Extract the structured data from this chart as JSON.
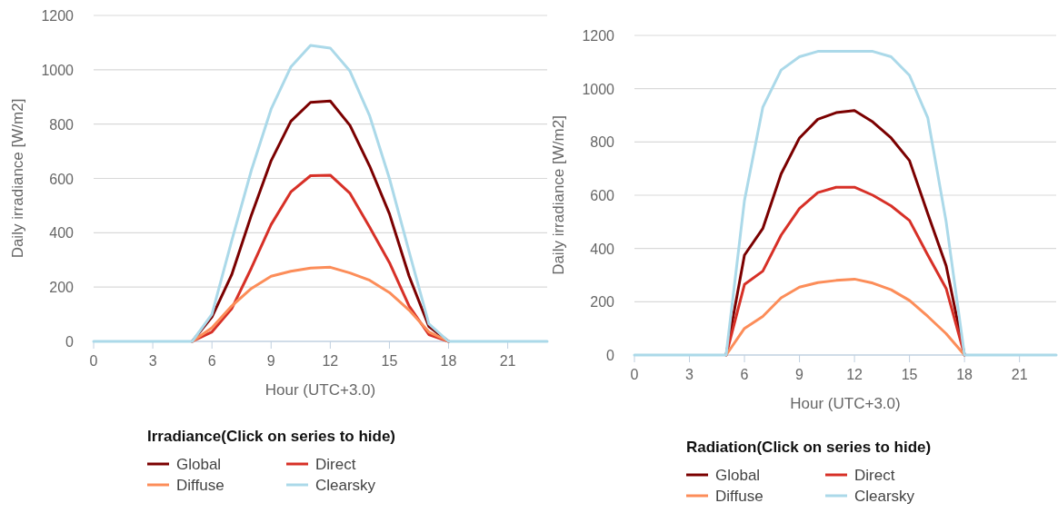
{
  "chart_data": [
    {
      "type": "line",
      "xlabel": "Hour (UTC+3.0)",
      "ylabel": "Daily irradiance [W/m2]",
      "legend_title": "Irradiance(Click on series to hide)",
      "legend": "bottom",
      "grid": "y",
      "marker": "none",
      "line_style": "solid",
      "x": [
        0,
        1,
        2,
        3,
        4,
        5,
        6,
        7,
        8,
        9,
        10,
        11,
        12,
        13,
        14,
        15,
        16,
        17,
        18,
        19,
        20,
        21,
        22,
        23
      ],
      "xlim": [
        0,
        23
      ],
      "xticks": [
        0,
        3,
        6,
        9,
        12,
        15,
        18,
        21
      ],
      "ylim": [
        0,
        1200
      ],
      "yticks": [
        0,
        200,
        400,
        600,
        800,
        1000,
        1200
      ],
      "series": [
        {
          "name": "Global",
          "color": "#7b0000",
          "values": [
            null,
            null,
            null,
            null,
            null,
            0,
            90,
            245,
            465,
            665,
            810,
            880,
            885,
            795,
            645,
            470,
            240,
            55,
            0,
            null,
            null,
            null,
            null,
            null
          ]
        },
        {
          "name": "Direct",
          "color": "#d73027",
          "values": [
            null,
            null,
            null,
            null,
            null,
            0,
            35,
            120,
            270,
            430,
            550,
            610,
            612,
            545,
            420,
            290,
            130,
            25,
            0,
            null,
            null,
            null,
            null,
            null
          ]
        },
        {
          "name": "Diffuse",
          "color": "#fc8d59",
          "values": [
            null,
            null,
            null,
            null,
            null,
            0,
            50,
            130,
            195,
            240,
            258,
            270,
            273,
            252,
            225,
            180,
            115,
            35,
            0,
            null,
            null,
            null,
            null,
            null
          ]
        },
        {
          "name": "Clearsky",
          "color": "#abd9e9",
          "values": [
            0,
            0,
            0,
            0,
            0,
            0,
            100,
            370,
            630,
            855,
            1010,
            1090,
            1080,
            995,
            830,
            600,
            330,
            65,
            0,
            0,
            0,
            0,
            0,
            0
          ]
        }
      ]
    },
    {
      "type": "line",
      "xlabel": "Hour (UTC+3.0)",
      "ylabel": "Daily irradiance [W/m2]",
      "legend_title": "Radiation(Click on series to hide)",
      "legend": "bottom",
      "grid": "y",
      "marker": "none",
      "line_style": "solid",
      "x": [
        0,
        1,
        2,
        3,
        4,
        5,
        6,
        7,
        8,
        9,
        10,
        11,
        12,
        13,
        14,
        15,
        16,
        17,
        18,
        19,
        20,
        21,
        22,
        23
      ],
      "xlim": [
        0,
        23
      ],
      "xticks": [
        0,
        3,
        6,
        9,
        12,
        15,
        18,
        21
      ],
      "ylim": [
        0,
        1200
      ],
      "yticks": [
        0,
        200,
        400,
        600,
        800,
        1000,
        1200
      ],
      "series": [
        {
          "name": "Global",
          "color": "#7b0000",
          "values": [
            null,
            null,
            null,
            null,
            null,
            0,
            375,
            475,
            680,
            815,
            885,
            910,
            918,
            875,
            815,
            730,
            530,
            335,
            0,
            null,
            null,
            null,
            null,
            null
          ]
        },
        {
          "name": "Direct",
          "color": "#d73027",
          "values": [
            null,
            null,
            null,
            null,
            null,
            0,
            265,
            315,
            450,
            550,
            610,
            630,
            630,
            600,
            560,
            505,
            375,
            250,
            0,
            null,
            null,
            null,
            null,
            null
          ]
        },
        {
          "name": "Diffuse",
          "color": "#fc8d59",
          "values": [
            null,
            null,
            null,
            null,
            null,
            0,
            100,
            145,
            215,
            255,
            272,
            280,
            285,
            270,
            245,
            205,
            145,
            80,
            0,
            null,
            null,
            null,
            null,
            null
          ]
        },
        {
          "name": "Clearsky",
          "color": "#abd9e9",
          "values": [
            0,
            0,
            0,
            0,
            0,
            0,
            580,
            930,
            1070,
            1120,
            1140,
            1140,
            1140,
            1140,
            1120,
            1050,
            890,
            500,
            0,
            0,
            0,
            0,
            0,
            0
          ]
        }
      ]
    }
  ]
}
